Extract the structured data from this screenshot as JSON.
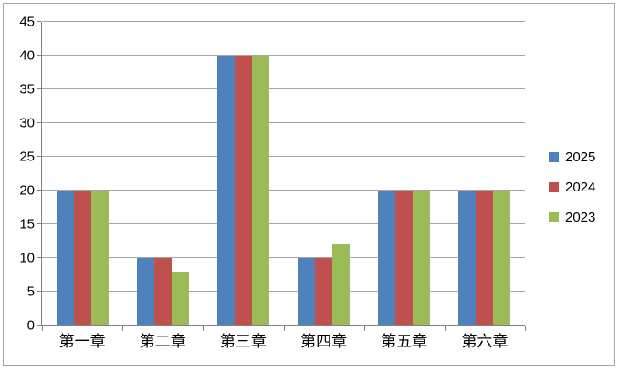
{
  "chart_data": {
    "type": "bar",
    "title": "",
    "categories": [
      "第一章",
      "第二章",
      "第三章",
      "第四章",
      "第五章",
      "第六章"
    ],
    "series": [
      {
        "name": "2025",
        "color": "#4F81BD",
        "values": [
          20,
          10,
          40,
          10,
          20,
          20
        ]
      },
      {
        "name": "2024",
        "color": "#C0504D",
        "values": [
          20,
          10,
          40,
          10,
          20,
          20
        ]
      },
      {
        "name": "2023",
        "color": "#9BBB59",
        "values": [
          20,
          8,
          40,
          12,
          20,
          20
        ]
      }
    ],
    "xlabel": "",
    "ylabel": "",
    "ylim": [
      0,
      45
    ],
    "ytick_step": 5,
    "ytick_labels": [
      "0",
      "5",
      "10",
      "15",
      "20",
      "25",
      "30",
      "35",
      "40",
      "45"
    ],
    "grid": true,
    "legend_position": "right"
  },
  "colors": {
    "background": "#FFFFFF",
    "chart_border": "#A6A6A6",
    "gridline": "#A6A6A6",
    "axis": "#808080",
    "text": "#000000"
  }
}
